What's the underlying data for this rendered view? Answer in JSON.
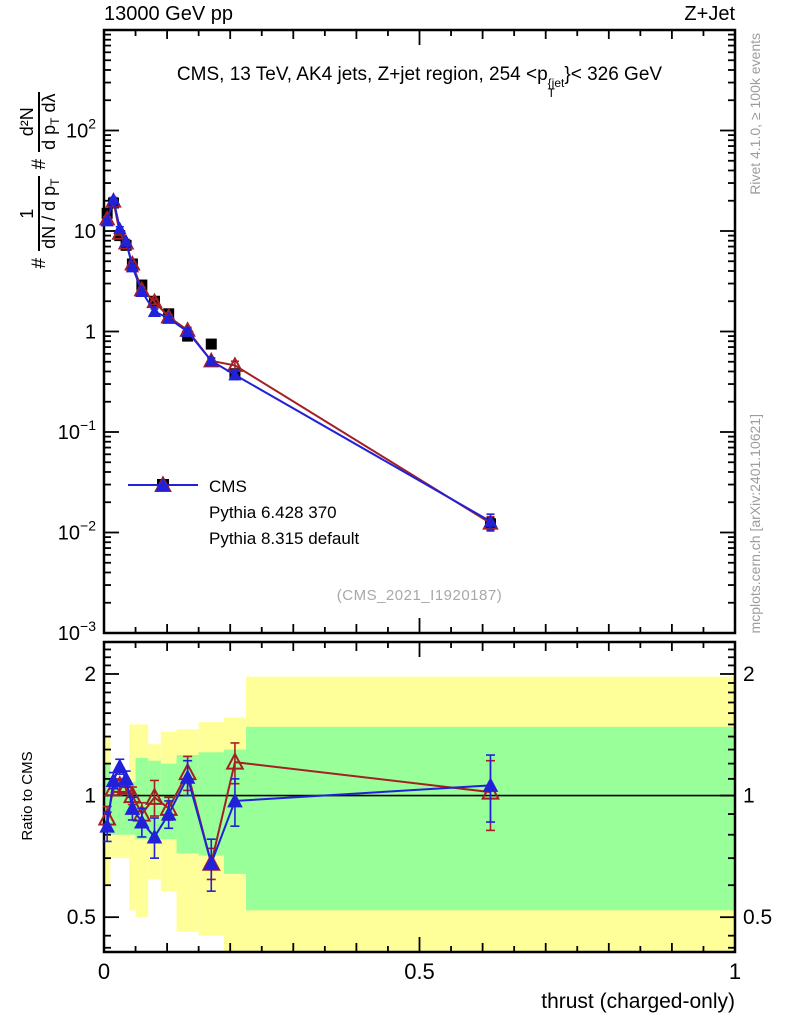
{
  "header": {
    "beam": "13000 GeV pp",
    "process": "Z+Jet"
  },
  "title": {
    "pre": "CMS, 13 TeV, AK4 jets, Z+jet region, 254 <p",
    "sup": "{jet",
    "sub": "T",
    "post": "}< 326 GeV"
  },
  "ylabel_parts": {
    "hash1": "#",
    "f1num": "1",
    "f1den_pre": "dN / d p",
    "f1den_sub": "T",
    "hash2": "#",
    "f2num": "d²N",
    "f2den_pre": "d p",
    "f2den_sub": "T",
    "f2den_post": " dλ"
  },
  "legend": {
    "items": [
      {
        "label": "CMS",
        "marker": "square",
        "color": "#000000",
        "line": false
      },
      {
        "label": "Pythia 6.428 370",
        "marker": "triangle-open",
        "color": "#a32024",
        "line": true
      },
      {
        "label": "Pythia 8.315 default",
        "marker": "triangle-filled",
        "color": "#2121d9",
        "line": true
      }
    ]
  },
  "watermark": "(CMS_2021_I1920187)",
  "credits": {
    "generator": "Rivet 4.1.0, ≥ 100k events",
    "site": "mcplots.cern.ch [arXiv:2401.10621]"
  },
  "ratio_label": "Ratio to CMS",
  "xlabel": "thrust (charged-only)",
  "chart_data": {
    "type": "line",
    "title": "CMS, 13 TeV, AK4 jets, Z+jet region, 254 < pT^{jet} < 326 GeV",
    "xlabel": "thrust (charged-only)",
    "ylabel": "# 1/(dN/dpT) # d2N/(dpT dlambda)",
    "x_scale": "linear",
    "x_range": [
      0,
      1
    ],
    "y_scale": "log",
    "y_range": [
      0.001,
      1000
    ],
    "grid": false,
    "legend_position": "inside-left",
    "bin_edges": [
      0,
      0.01,
      0.02,
      0.03,
      0.04,
      0.05,
      0.07,
      0.09,
      0.115,
      0.15,
      0.19,
      0.225,
      1.0
    ],
    "x": [
      0.005,
      0.015,
      0.025,
      0.035,
      0.045,
      0.06,
      0.08,
      0.1025,
      0.1325,
      0.17,
      0.2075,
      0.6125
    ],
    "series": [
      {
        "name": "CMS",
        "marker": "square",
        "color": "#000000",
        "draw": "points",
        "values": [
          15.0,
          19.0,
          9.0,
          7.2,
          4.7,
          2.9,
          2.0,
          1.5,
          0.9,
          0.75,
          0.38,
          0.0122
        ],
        "yerr_rel": [
          0.05,
          0.05,
          0.05,
          0.05,
          0.05,
          0.05,
          0.05,
          0.05,
          0.06,
          0.06,
          0.08,
          0.15
        ]
      },
      {
        "name": "Pythia 6.428 370",
        "marker": "triangle-open",
        "color": "#a32024",
        "draw": "line+points",
        "values": [
          13.2,
          19.8,
          9.5,
          7.6,
          4.7,
          2.6,
          1.98,
          1.4,
          1.03,
          0.51,
          0.46,
          0.0124
        ],
        "yerr_rel": [
          0.05,
          0.04,
          0.04,
          0.04,
          0.05,
          0.05,
          0.06,
          0.05,
          0.07,
          0.06,
          0.1,
          0.16
        ]
      },
      {
        "name": "Pythia 8.315 default",
        "marker": "triangle-filled",
        "color": "#2121d9",
        "draw": "line+points",
        "values": [
          12.6,
          20.7,
          10.6,
          7.9,
          4.4,
          2.5,
          1.58,
          1.35,
          1.0,
          0.51,
          0.37,
          0.0129
        ],
        "yerr_rel": [
          0.05,
          0.04,
          0.04,
          0.04,
          0.05,
          0.05,
          0.06,
          0.05,
          0.07,
          0.07,
          0.1,
          0.18
        ]
      }
    ],
    "xticks": [
      {
        "v": 0,
        "label": "0"
      },
      {
        "v": 0.5,
        "label": "0.5"
      },
      {
        "v": 1,
        "label": "1"
      }
    ],
    "ytick_exponents": [
      2,
      1,
      0,
      -1,
      -2,
      -3
    ],
    "ratio_panel": {
      "ylabel": "Ratio to CMS",
      "y_scale": "log",
      "y_range": [
        0.41,
        2.4
      ],
      "reference_line": 1,
      "yticks": [
        {
          "v": 2,
          "label": "2"
        },
        {
          "v": 1,
          "label": "1"
        },
        {
          "v": 0.5,
          "label": "0.5"
        }
      ],
      "series": [
        {
          "name": "Pythia 6.428 370",
          "marker": "triangle-open",
          "color": "#a32024",
          "values": [
            0.88,
            1.04,
            1.06,
            1.05,
            1.0,
            0.9,
            0.99,
            0.93,
            1.14,
            0.68,
            1.21,
            1.02
          ],
          "yerr": [
            0.06,
            0.04,
            0.04,
            0.04,
            0.05,
            0.06,
            0.1,
            0.06,
            0.11,
            0.06,
            0.14,
            0.2
          ]
        },
        {
          "name": "Pythia 8.315 default",
          "marker": "triangle-filled",
          "color": "#2121d9",
          "values": [
            0.84,
            1.09,
            1.18,
            1.1,
            0.93,
            0.86,
            0.79,
            0.9,
            1.11,
            0.68,
            0.97,
            1.06
          ],
          "yerr": [
            0.07,
            0.05,
            0.05,
            0.05,
            0.06,
            0.07,
            0.09,
            0.07,
            0.11,
            0.1,
            0.13,
            0.2
          ]
        }
      ],
      "bands": {
        "yellow_color": "#ffff99",
        "green_color": "#99ff99",
        "yellow": [
          [
            0.6,
            1.4
          ],
          [
            0.7,
            1.08
          ],
          [
            0.7,
            1.08
          ],
          [
            0.7,
            1.1
          ],
          [
            0.52,
            1.5
          ],
          [
            0.5,
            1.5
          ],
          [
            0.62,
            1.34
          ],
          [
            0.58,
            1.44
          ],
          [
            0.46,
            1.46
          ],
          [
            0.45,
            1.52
          ],
          [
            0.41,
            1.56
          ],
          [
            0.37,
            1.97
          ]
        ],
        "green": [
          [
            0.8,
            1.2
          ],
          [
            0.8,
            1.06
          ],
          [
            0.8,
            1.06
          ],
          [
            0.8,
            1.06
          ],
          [
            0.8,
            1.08
          ],
          [
            0.78,
            1.24
          ],
          [
            0.78,
            1.22
          ],
          [
            0.78,
            1.2
          ],
          [
            0.72,
            1.26
          ],
          [
            0.71,
            1.28
          ],
          [
            0.64,
            1.3
          ],
          [
            0.52,
            1.48
          ]
        ]
      }
    }
  }
}
